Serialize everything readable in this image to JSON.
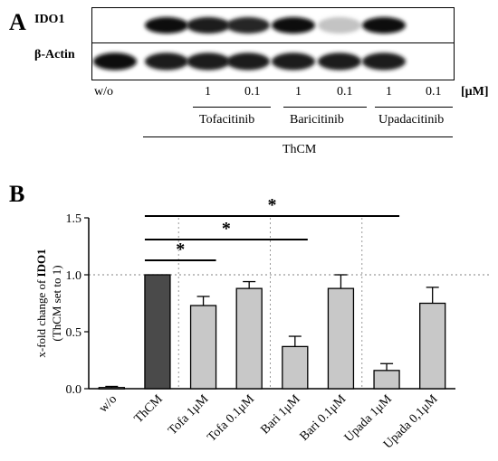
{
  "panel_a": {
    "letter": "A",
    "rows": [
      "IDO1",
      "β-Actin"
    ],
    "lane_labels": [
      "w/o",
      "1",
      "0.1",
      "1",
      "0.1",
      "1",
      "0.1"
    ],
    "unit": "[μM]",
    "drugs": [
      "Tofacitinib",
      "Baricitinib",
      "Upadacitinib"
    ],
    "treatment": "ThCM",
    "ido1_intensity": [
      0.0,
      1.0,
      0.95,
      0.9,
      1.0,
      0.25,
      1.0
    ],
    "actin_intensity": [
      1.0,
      0.95,
      0.95,
      0.95,
      0.95,
      0.95,
      0.95
    ]
  },
  "panel_b": {
    "letter": "B",
    "significance_marker": "*",
    "colors": {
      "ThCM": "#4a4a4a",
      "treated": "#c8c8c8",
      "control": "#ffffff"
    }
  },
  "chart_data": {
    "type": "bar",
    "categories": [
      "w/o",
      "ThCM",
      "Tofa 1μM",
      "Tofa 0.1μM",
      "Bari 1μM",
      "Bari 0.1μM",
      "Upada 1μM",
      "Upada 0,1μM"
    ],
    "values": [
      0.01,
      1.0,
      0.73,
      0.88,
      0.37,
      0.88,
      0.16,
      0.75
    ],
    "errors": [
      0.01,
      0.0,
      0.08,
      0.06,
      0.09,
      0.12,
      0.06,
      0.14
    ],
    "ylabel_line1": "x-fold change of ",
    "ylabel_bold": "IDO1",
    "ylabel_line2": "(ThCM set to 1)",
    "ylim": [
      0,
      1.5
    ],
    "yticks": [
      "0.0",
      "0.5",
      "1.0",
      "1.5"
    ],
    "ytick_values": [
      0,
      0.5,
      1.0,
      1.5
    ],
    "reference_line": 1.0,
    "significance": [
      {
        "from": "ThCM",
        "to": "Tofa 1μM",
        "label": "*"
      },
      {
        "from": "ThCM",
        "to": "Bari 1μM",
        "label": "*"
      },
      {
        "from": "ThCM",
        "to": "Upada 1μM",
        "label": "*"
      }
    ]
  }
}
